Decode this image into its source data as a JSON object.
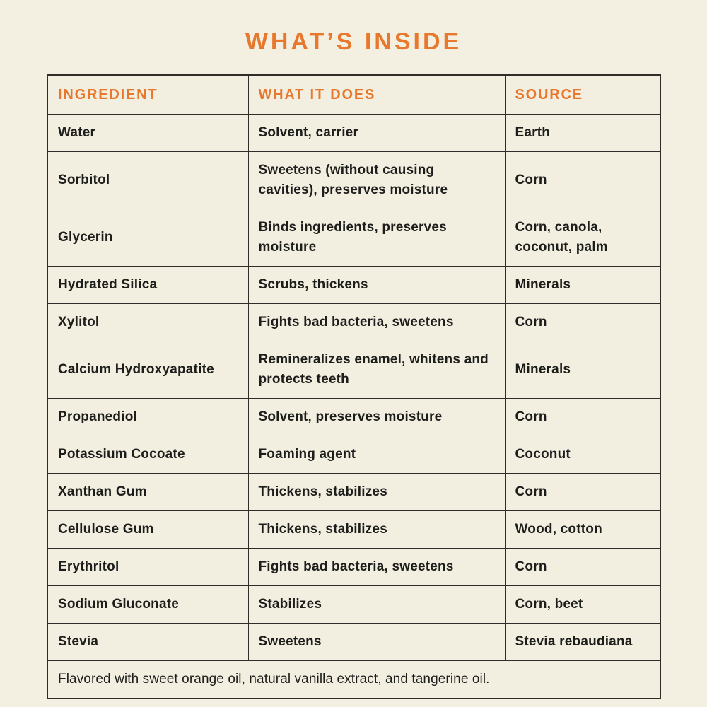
{
  "page": {
    "background_color": "#f3f0e1",
    "accent_color": "#e8782d",
    "text_color": "#1d1d1b",
    "border_color": "#2e2d28"
  },
  "title": "WHAT’S INSIDE",
  "table": {
    "columns": [
      {
        "label": "INGREDIENT"
      },
      {
        "label": "WHAT IT DOES"
      },
      {
        "label": "SOURCE"
      }
    ],
    "rows": [
      {
        "ingredient": "Water",
        "what_it_does": "Solvent, carrier",
        "source": "Earth"
      },
      {
        "ingredient": "Sorbitol",
        "what_it_does": "Sweetens (without causing cavities), preserves moisture",
        "source": "Corn"
      },
      {
        "ingredient": "Glycerin",
        "what_it_does": "Binds ingredients, preserves moisture",
        "source": "Corn, canola, coconut, palm"
      },
      {
        "ingredient": "Hydrated Silica",
        "what_it_does": "Scrubs, thickens",
        "source": "Minerals"
      },
      {
        "ingredient": "Xylitol",
        "what_it_does": "Fights bad bacteria, sweetens",
        "source": "Corn"
      },
      {
        "ingredient": "Calcium Hydroxyapatite",
        "what_it_does": "Remineralizes enamel, whitens and protects teeth",
        "source": "Minerals"
      },
      {
        "ingredient": "Propanediol",
        "what_it_does": "Solvent, preserves moisture",
        "source": "Corn"
      },
      {
        "ingredient": "Potassium Cocoate",
        "what_it_does": "Foaming agent",
        "source": "Coconut"
      },
      {
        "ingredient": "Xanthan Gum",
        "what_it_does": "Thickens, stabilizes",
        "source": "Corn"
      },
      {
        "ingredient": "Cellulose Gum",
        "what_it_does": "Thickens, stabilizes",
        "source": "Wood, cotton"
      },
      {
        "ingredient": "Erythritol",
        "what_it_does": "Fights bad bacteria, sweetens",
        "source": "Corn"
      },
      {
        "ingredient": "Sodium Gluconate",
        "what_it_does": "Stabilizes",
        "source": "Corn, beet"
      },
      {
        "ingredient": "Stevia",
        "what_it_does": "Sweetens",
        "source": "Stevia rebaudiana"
      }
    ],
    "footer": "Flavored with sweet orange oil, natural vanilla extract, and tangerine oil."
  }
}
